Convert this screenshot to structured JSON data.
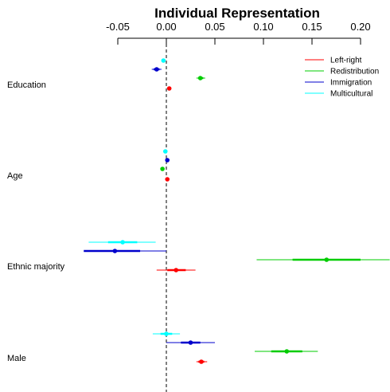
{
  "chart_data": {
    "type": "forest",
    "title": "Individual Representation",
    "xlabel": "",
    "ylabel": "",
    "xlim": [
      -0.085,
      0.235
    ],
    "xticks": [
      -0.05,
      0.0,
      0.05,
      0.1,
      0.15,
      0.2
    ],
    "xtick_labels": [
      "-0.05",
      "0.00",
      "0.05",
      "0.10",
      "0.15",
      "0.20"
    ],
    "reference_line": 0,
    "categories": [
      "Education",
      "Age",
      "Ethnic majority",
      "Male"
    ],
    "legend_position": "top-right",
    "series": [
      {
        "name": "Left-right",
        "color": "#ff0000",
        "points": [
          {
            "category": "Education",
            "est": 0.003,
            "ci_inner": [
              0.002,
              0.004
            ],
            "ci_outer": [
              0.001,
              0.005
            ]
          },
          {
            "category": "Age",
            "est": 0.001,
            "ci_inner": [
              0.0005,
              0.0015
            ],
            "ci_outer": [
              0.0,
              0.002
            ]
          },
          {
            "category": "Ethnic majority",
            "est": 0.01,
            "ci_inner": [
              0.001,
              0.02
            ],
            "ci_outer": [
              -0.01,
              0.03
            ]
          },
          {
            "category": "Male",
            "est": 0.036,
            "ci_inner": [
              0.033,
              0.039
            ],
            "ci_outer": [
              0.031,
              0.042
            ]
          }
        ]
      },
      {
        "name": "Redistribution",
        "color": "#00cc00",
        "points": [
          {
            "category": "Education",
            "est": 0.035,
            "ci_inner": [
              0.033,
              0.038
            ],
            "ci_outer": [
              0.031,
              0.04
            ]
          },
          {
            "category": "Age",
            "est": -0.004,
            "ci_inner": [
              -0.005,
              -0.003
            ],
            "ci_outer": [
              -0.006,
              -0.002
            ]
          },
          {
            "category": "Ethnic majority",
            "est": 0.165,
            "ci_inner": [
              0.13,
              0.2
            ],
            "ci_outer": [
              0.093,
              0.23
            ]
          },
          {
            "category": "Male",
            "est": 0.124,
            "ci_inner": [
              0.108,
              0.14
            ],
            "ci_outer": [
              0.091,
              0.156
            ]
          }
        ]
      },
      {
        "name": "Immigration",
        "color": "#0000cc",
        "points": [
          {
            "category": "Education",
            "est": -0.01,
            "ci_inner": [
              -0.013,
              -0.007
            ],
            "ci_outer": [
              -0.015,
              -0.005
            ]
          },
          {
            "category": "Age",
            "est": 0.001,
            "ci_inner": [
              0.0005,
              0.0015
            ],
            "ci_outer": [
              0.0,
              0.002
            ]
          },
          {
            "category": "Ethnic majority",
            "est": -0.053,
            "ci_inner": [
              -0.085,
              -0.027
            ],
            "ci_outer": [
              -0.085,
              0.0
            ]
          },
          {
            "category": "Male",
            "est": 0.025,
            "ci_inner": [
              0.015,
              0.035
            ],
            "ci_outer": [
              0.0,
              0.05
            ]
          }
        ]
      },
      {
        "name": "Multicultural",
        "color": "#00ffff",
        "points": [
          {
            "category": "Education",
            "est": -0.003,
            "ci_inner": [
              -0.004,
              -0.002
            ],
            "ci_outer": [
              -0.005,
              -0.001
            ]
          },
          {
            "category": "Age",
            "est": -0.001,
            "ci_inner": [
              -0.0015,
              -0.0005
            ],
            "ci_outer": [
              -0.002,
              0.0
            ]
          },
          {
            "category": "Ethnic majority",
            "est": -0.045,
            "ci_inner": [
              -0.06,
              -0.03
            ],
            "ci_outer": [
              -0.08,
              -0.011
            ]
          },
          {
            "category": "Male",
            "est": 0.0,
            "ci_inner": [
              -0.006,
              0.006
            ],
            "ci_outer": [
              -0.014,
              0.014
            ]
          }
        ]
      }
    ]
  }
}
